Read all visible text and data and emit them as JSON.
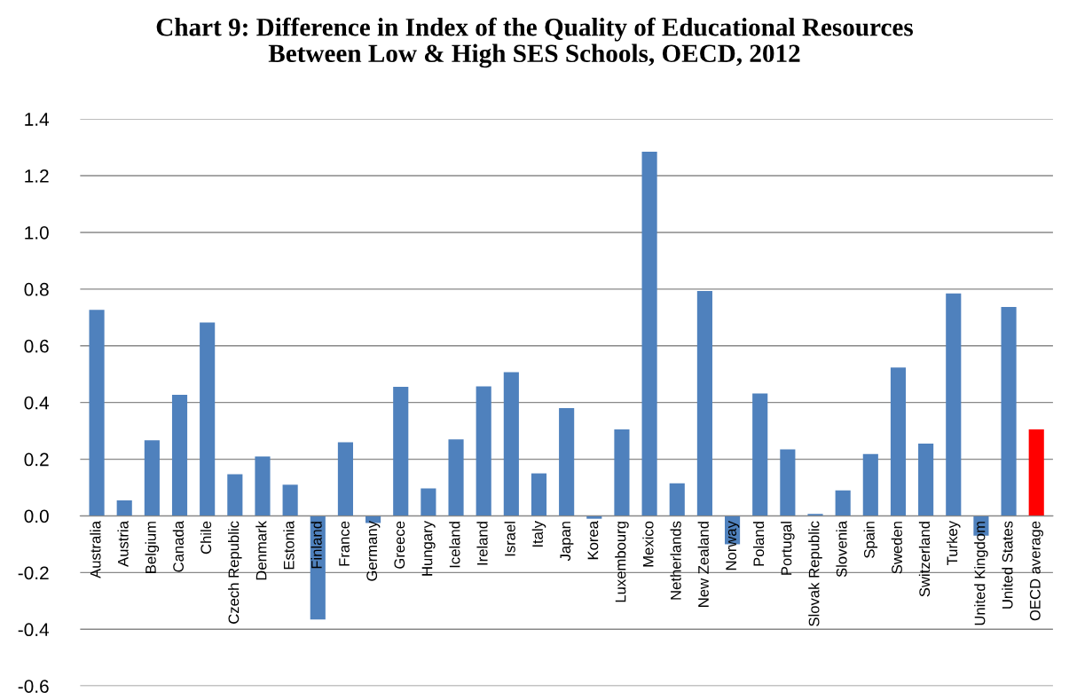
{
  "chart_data": {
    "type": "bar",
    "title": "Chart 9: Difference in Index of the Quality of Educational Resources\nBetween Low & High SES Schools, OECD, 2012",
    "categories": [
      "Australia",
      "Austria",
      "Belgium",
      "Canada",
      "Chile",
      "Czech Republic",
      "Denmark",
      "Estonia",
      "Finland",
      "France",
      "Germany",
      "Greece",
      "Hungary",
      "Iceland",
      "Ireland",
      "Israel",
      "Italy",
      "Japan",
      "Korea",
      "Luxembourg",
      "Mexico",
      "Netherlands",
      "New Zealand",
      "Norway",
      "Poland",
      "Portugal",
      "Slovak Republic",
      "Slovenia",
      "Spain",
      "Sweden",
      "Switzerland",
      "Turkey",
      "United Kingdom",
      "United States",
      "OECD average"
    ],
    "values": [
      0.727,
      0.055,
      0.267,
      0.427,
      0.682,
      0.147,
      0.21,
      0.11,
      -0.365,
      0.26,
      -0.025,
      0.455,
      0.097,
      0.27,
      0.457,
      0.507,
      0.15,
      0.38,
      -0.01,
      0.305,
      1.285,
      0.115,
      0.793,
      -0.1,
      0.432,
      0.235,
      0.007,
      0.09,
      0.218,
      0.523,
      0.255,
      0.785,
      -0.07,
      0.737,
      0.305
    ],
    "colors": [
      "#4f81bd",
      "#4f81bd",
      "#4f81bd",
      "#4f81bd",
      "#4f81bd",
      "#4f81bd",
      "#4f81bd",
      "#4f81bd",
      "#4f81bd",
      "#4f81bd",
      "#4f81bd",
      "#4f81bd",
      "#4f81bd",
      "#4f81bd",
      "#4f81bd",
      "#4f81bd",
      "#4f81bd",
      "#4f81bd",
      "#4f81bd",
      "#4f81bd",
      "#4f81bd",
      "#4f81bd",
      "#4f81bd",
      "#4f81bd",
      "#4f81bd",
      "#4f81bd",
      "#4f81bd",
      "#4f81bd",
      "#4f81bd",
      "#4f81bd",
      "#4f81bd",
      "#4f81bd",
      "#4f81bd",
      "#4f81bd",
      "#ff0000"
    ],
    "ylim": [
      -0.6,
      1.4
    ],
    "yticks": [
      {
        "value": -0.6,
        "label": "-0.6"
      },
      {
        "value": -0.4,
        "label": "-0.4"
      },
      {
        "value": -0.2,
        "label": "-0.2"
      },
      {
        "value": 0,
        "label": "0.0"
      },
      {
        "value": 0.2,
        "label": "0.2"
      },
      {
        "value": 0.4,
        "label": "0.4"
      },
      {
        "value": 0.6,
        "label": "0.6"
      },
      {
        "value": 0.8,
        "label": "0.8"
      },
      {
        "value": 1.0,
        "label": "1.0"
      },
      {
        "value": 1.2,
        "label": "1.2"
      },
      {
        "value": 1.4,
        "label": "1.4"
      }
    ],
    "grid": "y",
    "legend": false
  }
}
